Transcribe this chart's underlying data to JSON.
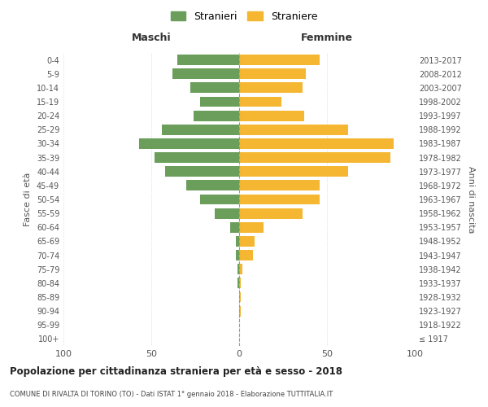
{
  "age_groups": [
    "100+",
    "95-99",
    "90-94",
    "85-89",
    "80-84",
    "75-79",
    "70-74",
    "65-69",
    "60-64",
    "55-59",
    "50-54",
    "45-49",
    "40-44",
    "35-39",
    "30-34",
    "25-29",
    "20-24",
    "15-19",
    "10-14",
    "5-9",
    "0-4"
  ],
  "birth_years": [
    "≤ 1917",
    "1918-1922",
    "1923-1927",
    "1928-1932",
    "1933-1937",
    "1938-1942",
    "1943-1947",
    "1948-1952",
    "1953-1957",
    "1958-1962",
    "1963-1967",
    "1968-1972",
    "1973-1977",
    "1978-1982",
    "1983-1987",
    "1988-1992",
    "1993-1997",
    "1998-2002",
    "2003-2007",
    "2008-2012",
    "2013-2017"
  ],
  "maschi": [
    0,
    0,
    0,
    0,
    1,
    1,
    2,
    2,
    5,
    14,
    22,
    30,
    42,
    48,
    57,
    44,
    26,
    22,
    28,
    38,
    35
  ],
  "femmine": [
    0,
    0,
    1,
    1,
    1,
    2,
    8,
    9,
    14,
    36,
    46,
    46,
    62,
    86,
    88,
    62,
    37,
    24,
    36,
    38,
    46
  ],
  "color_maschi": "#6a9e5a",
  "color_femmine": "#f5b731",
  "xlim": 100,
  "title": "Popolazione per cittadinanza straniera per età e sesso - 2018",
  "subtitle": "COMUNE DI RIVALTA DI TORINO (TO) - Dati ISTAT 1° gennaio 2018 - Elaborazione TUTTITALIA.IT",
  "xlabel_left": "Maschi",
  "xlabel_right": "Femmine",
  "ylabel_left": "Fasce di età",
  "ylabel_right": "Anni di nascita",
  "legend_maschi": "Stranieri",
  "legend_femmine": "Straniere",
  "bg_color": "#ffffff",
  "grid_color": "#cccccc"
}
